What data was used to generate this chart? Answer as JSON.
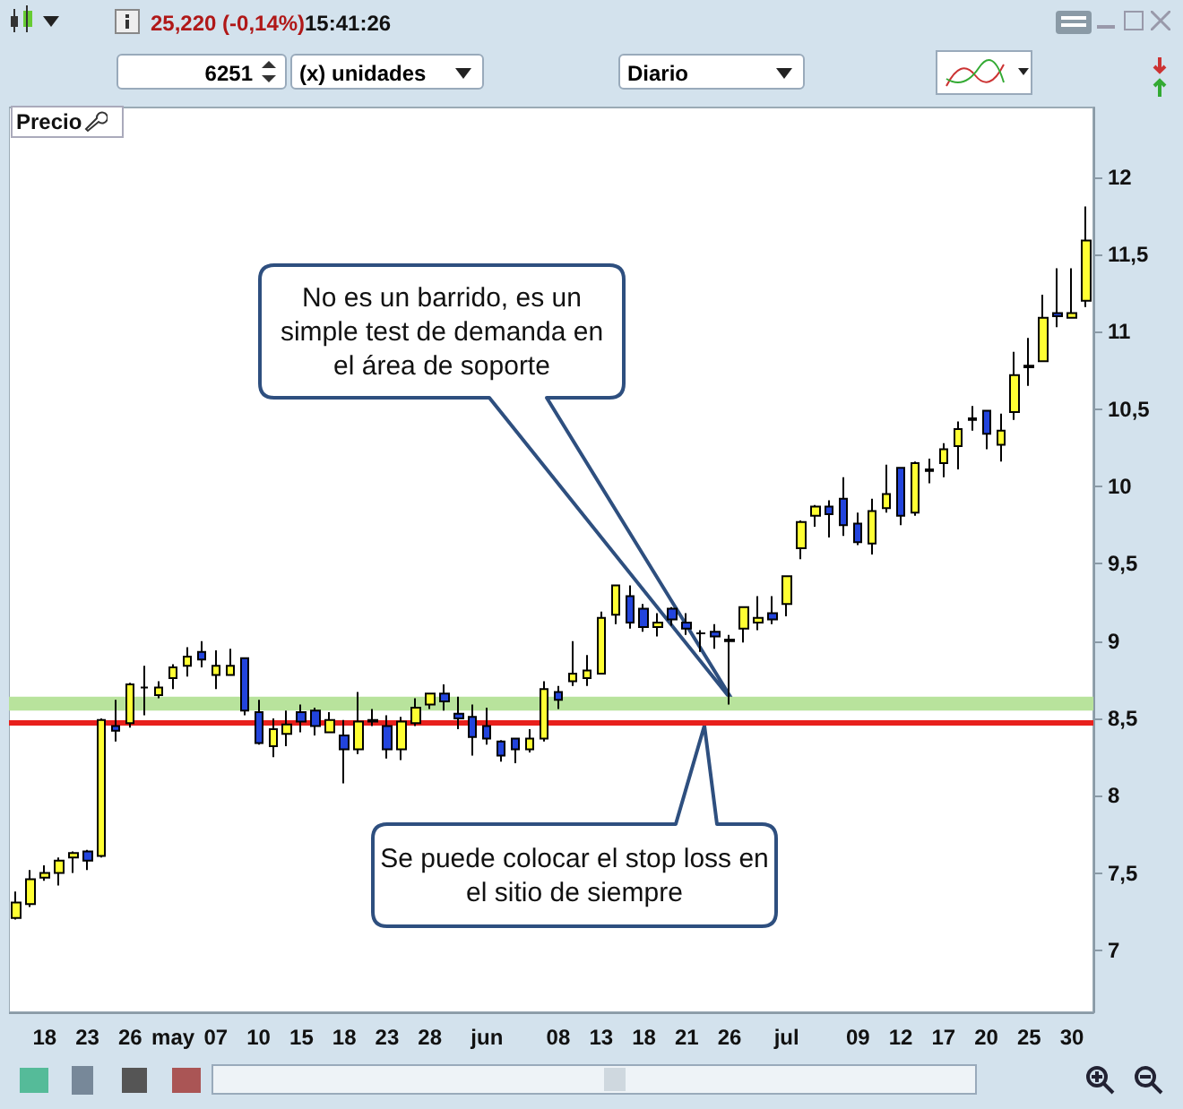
{
  "chart_data": {
    "type": "candlestick",
    "categories": [
      null,
      null,
      "18",
      null,
      null,
      "23",
      null,
      null,
      "26",
      null,
      null,
      "may",
      null,
      null,
      "07",
      null,
      null,
      "10",
      null,
      null,
      "15",
      null,
      null,
      "18",
      null,
      null,
      "23",
      null,
      null,
      "28",
      null,
      null,
      null,
      "jun",
      null,
      null,
      null,
      null,
      "08",
      null,
      null,
      "13",
      null,
      null,
      "18",
      null,
      null,
      "21",
      null,
      null,
      "26",
      null,
      null,
      null,
      "jul",
      null,
      null,
      null,
      null,
      "09",
      null,
      null,
      "12",
      null,
      null,
      "17",
      null,
      null,
      "20",
      null,
      null,
      "25",
      null,
      null,
      "30",
      null
    ],
    "series": [
      {
        "ohlc": [
          [
            7.21,
            7.38,
            7.2,
            7.31
          ],
          [
            7.3,
            7.52,
            7.28,
            7.46
          ],
          [
            7.47,
            7.55,
            7.45,
            7.5
          ],
          [
            7.5,
            7.6,
            7.42,
            7.58
          ],
          [
            7.6,
            7.64,
            7.5,
            7.63
          ],
          [
            7.64,
            7.65,
            7.52,
            7.58
          ],
          [
            7.61,
            8.5,
            7.6,
            8.49
          ],
          [
            8.45,
            8.62,
            8.35,
            8.42
          ],
          [
            8.47,
            8.73,
            8.44,
            8.72
          ],
          [
            8.7,
            8.84,
            8.52,
            8.7
          ],
          [
            8.65,
            8.74,
            8.63,
            8.7
          ],
          [
            8.76,
            8.85,
            8.69,
            8.83
          ],
          [
            8.84,
            8.96,
            8.77,
            8.9
          ],
          [
            8.93,
            9.0,
            8.83,
            8.88
          ],
          [
            8.78,
            8.94,
            8.69,
            8.84
          ],
          [
            8.78,
            8.95,
            8.78,
            8.84
          ],
          [
            8.89,
            8.89,
            8.52,
            8.55
          ],
          [
            8.54,
            8.62,
            8.33,
            8.34
          ],
          [
            8.32,
            8.5,
            8.25,
            8.43
          ],
          [
            8.4,
            8.55,
            8.32,
            8.46
          ],
          [
            8.54,
            8.59,
            8.41,
            8.48
          ],
          [
            8.55,
            8.57,
            8.39,
            8.45
          ],
          [
            8.41,
            8.54,
            8.41,
            8.49
          ],
          [
            8.39,
            8.49,
            8.08,
            8.3
          ],
          [
            8.3,
            8.67,
            8.27,
            8.48
          ],
          [
            8.48,
            8.56,
            8.45,
            8.49
          ],
          [
            8.45,
            8.52,
            8.24,
            8.3
          ],
          [
            8.3,
            8.51,
            8.23,
            8.48
          ],
          [
            8.47,
            8.63,
            8.45,
            8.57
          ],
          [
            8.59,
            8.66,
            8.56,
            8.66
          ],
          [
            8.66,
            8.72,
            8.55,
            8.61
          ],
          [
            8.53,
            8.64,
            8.43,
            8.5
          ],
          [
            8.51,
            8.59,
            8.26,
            8.38
          ],
          [
            8.45,
            8.57,
            8.33,
            8.37
          ],
          [
            8.35,
            8.36,
            8.22,
            8.26
          ],
          [
            8.37,
            8.37,
            8.21,
            8.3
          ],
          [
            8.3,
            8.43,
            8.28,
            8.37
          ],
          [
            8.37,
            8.74,
            8.35,
            8.69
          ],
          [
            8.67,
            8.71,
            8.56,
            8.62
          ],
          [
            8.74,
            9.0,
            8.71,
            8.79
          ],
          [
            8.76,
            8.91,
            8.71,
            8.81
          ],
          [
            8.79,
            9.19,
            8.79,
            9.15
          ],
          [
            9.17,
            9.36,
            9.11,
            9.36
          ],
          [
            9.29,
            9.36,
            9.08,
            9.12
          ],
          [
            9.21,
            9.24,
            9.06,
            9.09
          ],
          [
            9.09,
            9.18,
            9.03,
            9.12
          ],
          [
            9.21,
            9.22,
            9.1,
            9.14
          ],
          [
            9.12,
            9.18,
            9.04,
            9.08
          ],
          [
            9.05,
            9.07,
            8.93,
            9.05
          ],
          [
            9.06,
            9.11,
            8.95,
            9.03
          ],
          [
            9.0,
            9.04,
            8.59,
            9.01
          ],
          [
            9.08,
            9.22,
            8.99,
            9.22
          ],
          [
            9.12,
            9.29,
            9.07,
            9.15
          ],
          [
            9.18,
            9.29,
            9.11,
            9.14
          ],
          [
            9.24,
            9.42,
            9.16,
            9.42
          ],
          [
            9.6,
            9.78,
            9.53,
            9.77
          ],
          [
            9.81,
            9.88,
            9.74,
            9.87
          ],
          [
            9.87,
            9.91,
            9.67,
            9.82
          ],
          [
            9.92,
            10.06,
            9.68,
            9.75
          ],
          [
            9.76,
            9.83,
            9.62,
            9.64
          ],
          [
            9.63,
            9.92,
            9.56,
            9.84
          ],
          [
            9.86,
            10.14,
            9.83,
            9.95
          ],
          [
            10.12,
            10.12,
            9.75,
            9.81
          ],
          [
            9.83,
            10.16,
            9.81,
            10.15
          ],
          [
            10.1,
            10.18,
            10.02,
            10.11
          ],
          [
            10.15,
            10.28,
            10.06,
            10.24
          ],
          [
            10.26,
            10.42,
            10.11,
            10.37
          ],
          [
            10.43,
            10.52,
            10.36,
            10.44
          ],
          [
            10.49,
            10.49,
            10.24,
            10.34
          ],
          [
            10.27,
            10.47,
            10.16,
            10.36
          ],
          [
            10.48,
            10.87,
            10.43,
            10.72
          ],
          [
            10.77,
            10.96,
            10.65,
            10.78
          ],
          [
            10.81,
            11.24,
            10.81,
            11.09
          ],
          [
            11.12,
            11.41,
            11.03,
            11.1
          ],
          [
            11.09,
            11.41,
            11.09,
            11.12
          ],
          [
            11.2,
            11.81,
            11.16,
            11.59
          ]
        ],
        "colors": [
          "#ffff33",
          "#ffff33",
          "#ffff33",
          "#ffff33",
          "#ffff33",
          "#2244dd",
          "#ffff33",
          "#2244dd",
          "#ffff33",
          "#000000",
          "#ffff33",
          "#ffff33",
          "#ffff33",
          "#2244dd",
          "#ffff33",
          "#ffff33",
          "#2244dd",
          "#2244dd",
          "#ffff33",
          "#ffff33",
          "#2244dd",
          "#2244dd",
          "#ffff33",
          "#2244dd",
          "#ffff33",
          "#ffff33",
          "#2244dd",
          "#ffff33",
          "#ffff33",
          "#ffff33",
          "#2244dd",
          "#2244dd",
          "#2244dd",
          "#2244dd",
          "#2244dd",
          "#2244dd",
          "#ffff33",
          "#ffff33",
          "#2244dd",
          "#ffff33",
          "#ffff33",
          "#ffff33",
          "#ffff33",
          "#2244dd",
          "#2244dd",
          "#ffff33",
          "#2244dd",
          "#2244dd",
          "#000000",
          "#2244dd",
          "#ffff33",
          "#ffff33",
          "#ffff33",
          "#2244dd",
          "#ffff33",
          "#ffff33",
          "#ffff33",
          "#2244dd",
          "#2244dd",
          "#2244dd",
          "#ffff33",
          "#ffff33",
          "#2244dd",
          "#ffff33",
          "#ffff33",
          "#ffff33",
          "#ffff33",
          "#ffff33",
          "#2244dd",
          "#ffff33",
          "#ffff33",
          "#ffff33",
          "#ffff33",
          "#2244dd",
          "#ffff33",
          "#ffff33"
        ]
      }
    ],
    "ylim": [
      6.6,
      12.45
    ],
    "yticks": [
      7,
      {
        "value": 7.5,
        "label": "7,5"
      },
      8,
      {
        "value": 8.5,
        "label": "8,5"
      },
      9,
      {
        "value": 9.5,
        "label": "9,5"
      },
      10,
      {
        "value": 10.5,
        "label": "10,5"
      },
      11,
      {
        "value": 11.5,
        "label": "11,5"
      },
      12
    ],
    "bands": [
      {
        "axis": "y",
        "from": 8.55,
        "to": 8.64,
        "color": "#b8e39c"
      }
    ],
    "ref_lines": [
      {
        "axis": "y",
        "value": 8.47,
        "color": "#e8201c",
        "line_style": "solid"
      }
    ],
    "annotations": [
      "No es un barrido, es un simple test de demanda en el área de soporte",
      "Se puede colocar el stop loss en el sitio de siempre",
      "25,220 (-0,14%)",
      "15:41:26",
      "6251",
      "(x) unidades",
      "Diario",
      "Precio"
    ]
  }
}
